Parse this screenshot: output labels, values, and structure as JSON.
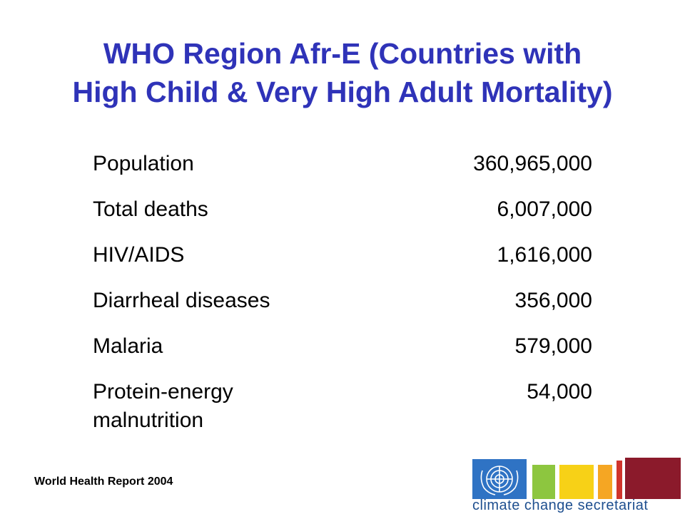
{
  "slide": {
    "title_line1": "WHO Region Afr-E (Countries with",
    "title_line2": "High Child & Very High Adult Mortality)",
    "source": "World Health Report 2004"
  },
  "rows": [
    {
      "label": "Population",
      "value": "360,965,000"
    },
    {
      "label": "Total deaths",
      "value": "6,007,000"
    },
    {
      "label": "HIV/AIDS",
      "value": "1,616,000"
    },
    {
      "label": "Diarrheal diseases",
      "value": "356,000"
    },
    {
      "label": "Malaria",
      "value": "579,000"
    },
    {
      "label": "Protein-energy malnutrition",
      "value": "54,000"
    }
  ],
  "logo": {
    "text": "climate change secretariat",
    "colors": {
      "un_blue": "#2f73c4",
      "green": "#8dc63f",
      "yellow": "#f7d117",
      "orange": "#f5a623",
      "red": "#d0342c",
      "maroon": "#8b1a2b"
    }
  }
}
